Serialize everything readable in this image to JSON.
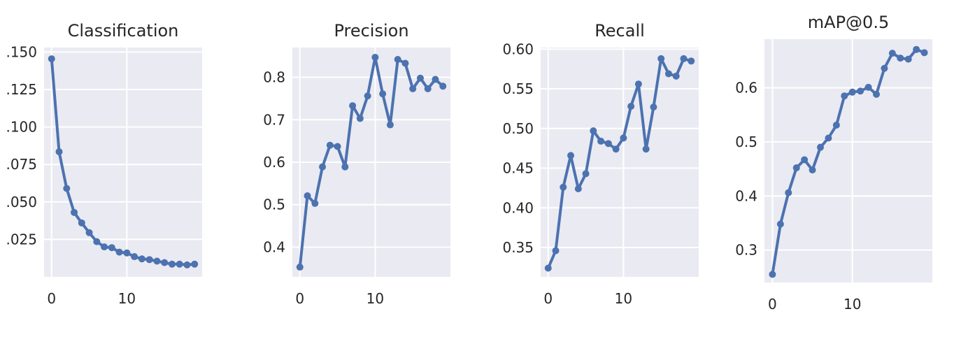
{
  "colors": {
    "background": "#eaeaf2",
    "grid": "#ffffff",
    "line": "#4c72b0",
    "text": "#262626"
  },
  "chart_data": [
    {
      "type": "line",
      "title": "Classification",
      "xlabel": "",
      "ylabel": "",
      "xlim": [
        -1,
        20
      ],
      "ylim": [
        0,
        0.153
      ],
      "xticks": [
        0,
        10
      ],
      "yticks": [
        0.025,
        0.05,
        0.075,
        0.1,
        0.125,
        0.15
      ],
      "ytick_labels": [
        ".025",
        ".050",
        ".075",
        ".100",
        ".125",
        ".150"
      ],
      "grid": true,
      "x": [
        0,
        1,
        2,
        3,
        4,
        5,
        6,
        7,
        8,
        9,
        10,
        11,
        12,
        13,
        14,
        15,
        16,
        17,
        18,
        19
      ],
      "series": [
        {
          "values": [
            0.1455,
            0.0835,
            0.059,
            0.043,
            0.036,
            0.0295,
            0.0235,
            0.02,
            0.0195,
            0.0165,
            0.016,
            0.0135,
            0.012,
            0.0115,
            0.0105,
            0.0095,
            0.0085,
            0.0085,
            0.008,
            0.0085
          ]
        }
      ]
    },
    {
      "type": "line",
      "title": "Precision",
      "xlabel": "",
      "ylabel": "",
      "xlim": [
        -1,
        20
      ],
      "ylim": [
        0.33,
        0.87
      ],
      "xticks": [
        0,
        10
      ],
      "yticks": [
        0.4,
        0.5,
        0.6,
        0.7,
        0.8
      ],
      "ytick_labels": [
        "0.4",
        "0.5",
        "0.6",
        "0.7",
        "0.8"
      ],
      "grid": true,
      "x": [
        0,
        1,
        2,
        3,
        4,
        5,
        6,
        7,
        8,
        9,
        10,
        11,
        12,
        13,
        14,
        15,
        16,
        17,
        18,
        19
      ],
      "series": [
        {
          "values": [
            0.353,
            0.521,
            0.503,
            0.589,
            0.64,
            0.637,
            0.589,
            0.733,
            0.703,
            0.756,
            0.847,
            0.761,
            0.688,
            0.842,
            0.833,
            0.773,
            0.798,
            0.773,
            0.795,
            0.779
          ]
        }
      ]
    },
    {
      "type": "line",
      "title": "Recall",
      "xlabel": "",
      "ylabel": "",
      "xlim": [
        -1,
        20
      ],
      "ylim": [
        0.313,
        0.602
      ],
      "xticks": [
        0,
        10
      ],
      "yticks": [
        0.35,
        0.4,
        0.45,
        0.5,
        0.55,
        0.6
      ],
      "ytick_labels": [
        "0.35",
        "0.40",
        "0.45",
        "0.50",
        "0.55",
        "0.60"
      ],
      "grid": true,
      "x": [
        0,
        1,
        2,
        3,
        4,
        5,
        6,
        7,
        8,
        9,
        10,
        11,
        12,
        13,
        14,
        15,
        16,
        17,
        18,
        19
      ],
      "series": [
        {
          "values": [
            0.324,
            0.346,
            0.426,
            0.466,
            0.424,
            0.443,
            0.497,
            0.484,
            0.481,
            0.474,
            0.488,
            0.528,
            0.556,
            0.474,
            0.527,
            0.588,
            0.569,
            0.566,
            0.588,
            0.585
          ]
        }
      ]
    },
    {
      "type": "line",
      "title": "mAP@0.5",
      "xlabel": "",
      "ylabel": "",
      "xlim": [
        -1,
        20
      ],
      "ylim": [
        0.24,
        0.69
      ],
      "xticks": [
        0,
        10
      ],
      "yticks": [
        0.3,
        0.4,
        0.5,
        0.6
      ],
      "ytick_labels": [
        "0.3",
        "0.4",
        "0.5",
        "0.6"
      ],
      "grid": true,
      "x": [
        0,
        1,
        2,
        3,
        4,
        5,
        6,
        7,
        8,
        9,
        10,
        11,
        12,
        13,
        14,
        15,
        16,
        17,
        18,
        19
      ],
      "series": [
        {
          "values": [
            0.255,
            0.348,
            0.406,
            0.452,
            0.467,
            0.448,
            0.49,
            0.507,
            0.531,
            0.585,
            0.592,
            0.594,
            0.601,
            0.588,
            0.636,
            0.664,
            0.655,
            0.653,
            0.671,
            0.665
          ]
        }
      ]
    }
  ]
}
